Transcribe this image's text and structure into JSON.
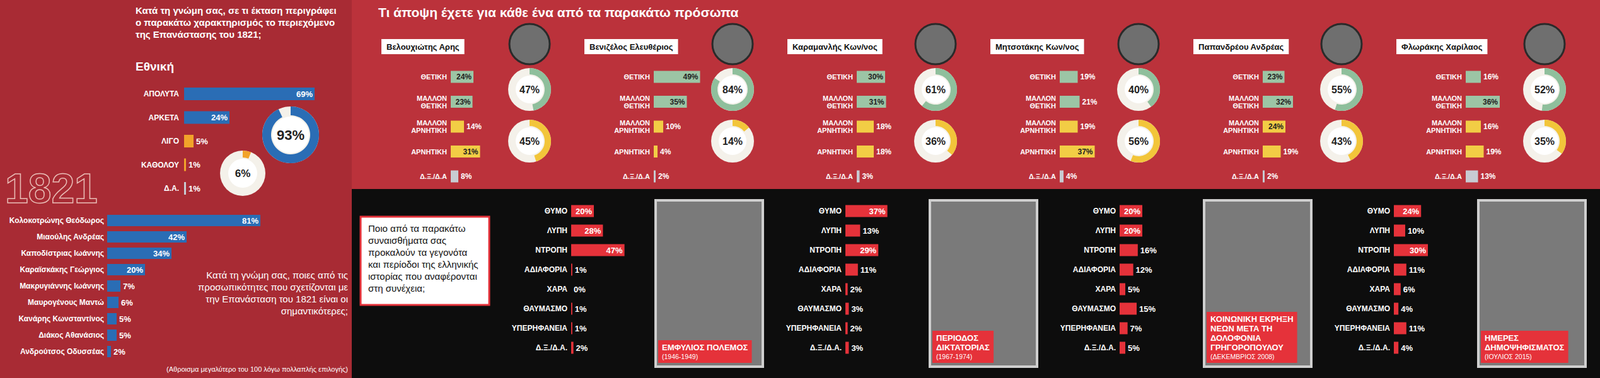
{
  "chart_data": [
    {
      "type": "bar",
      "orientation": "horizontal",
      "title": "Κατά τη γνώμη σας, σε τι έκταση περιγράφει ο παρακάτω χαρακτηρισμός το περιεχόμενο της Επανάστασης του 1821;",
      "subtitle": "Εθνική",
      "categories": [
        "ΑΠΟΛΥΤΑ",
        "ΑΡΚΕΤΑ",
        "ΛΙΓΟ",
        "ΚΑΘΟΛΟΥ",
        "Δ.Α."
      ],
      "values": [
        69,
        24,
        5,
        1,
        1
      ],
      "value_labels": [
        "69%",
        "24%",
        "5%",
        "1%",
        "1%"
      ],
      "colors": [
        "#2a6db5",
        "#2a6db5",
        "#f2a32a",
        "#f2a32a",
        "#c8cbd2"
      ],
      "totals": [
        93,
        6
      ],
      "total_labels": [
        "93%",
        "6%"
      ],
      "totals_lim": [
        0,
        100
      ],
      "annotations": [
        "1821"
      ],
      "data_labels": true,
      "tick_labels": "y"
    },
    {
      "type": "bar",
      "orientation": "horizontal",
      "title": "Κατά τη γνώμη σας, ποιες από τις προσωπικότητες που σχετίζονται με την Επανάσταση του 1821 είναι οι σημαντικότερες;",
      "note": "(Αθροισμα μεγαλύτερο του 100 λόγω πολλαπλής επιλογής)",
      "categories": [
        "Κολοκοτρώνης Θεόδωρος",
        "Μιαούλης Ανδρέας",
        "Καποδίστριας Ιωάννης",
        "Καραϊσκάκης Γεώργιος",
        "Μακρυγιάννης Ιωάννης",
        "Μαυρογένους Μαντώ",
        "Κανάρης Κωνσταντίνος",
        "Διάκος Αθανάσιος",
        "Ανδρούτσος Οδυσσέας"
      ],
      "values": [
        81,
        42,
        34,
        20,
        7,
        6,
        5,
        5,
        2
      ],
      "value_labels": [
        "81%",
        "42%",
        "34%",
        "20%",
        "7%",
        "6%",
        "5%",
        "5%",
        "2%"
      ],
      "color": "#2a6db5",
      "data_labels": true,
      "tick_labels": "y"
    },
    {
      "type": "bar",
      "orientation": "horizontal",
      "title": "Τι άποψη έχετε για κάθε ένα από τα παρακάτω πρόσωπα",
      "categories": [
        "ΘΕΤΙΚΗ",
        "ΜΑΛΛΟΝ ΘΕΤΙΚΗ",
        "ΜΑΛΛΟΝ ΑΡΝΗΤΙΚΗ",
        "ΑΡΝΗΤΙΚΗ",
        "Δ.Ξ./Δ.Α"
      ],
      "colors": [
        "#9cc5a5",
        "#9cc5a5",
        "#f2cd45",
        "#f2cd45",
        "#c8cbd2"
      ],
      "totals_lim": [
        0,
        100
      ],
      "series": [
        {
          "name": "Βελουχιώτης Αρης",
          "values": [
            24,
            23,
            14,
            31,
            8
          ],
          "value_labels": [
            "24%",
            "23%",
            "14%",
            "31%",
            "8%"
          ],
          "totals": [
            47,
            45
          ],
          "total_labels": [
            "47%",
            "45%"
          ]
        },
        {
          "name": "Βενιζέλος Ελευθέριος",
          "values": [
            49,
            35,
            10,
            4,
            2
          ],
          "value_labels": [
            "49%",
            "35%",
            "10%",
            "4%",
            "2%"
          ],
          "totals": [
            84,
            14
          ],
          "total_labels": [
            "84%",
            "14%"
          ]
        },
        {
          "name": "Καραμανλής Κων/νος",
          "values": [
            30,
            31,
            18,
            18,
            3
          ],
          "value_labels": [
            "30%",
            "31%",
            "18%",
            "18%",
            "3%"
          ],
          "totals": [
            61,
            36
          ],
          "total_labels": [
            "61%",
            "36%"
          ]
        },
        {
          "name": "Μητσοτάκης Κων/νος",
          "values": [
            19,
            21,
            19,
            37,
            4
          ],
          "value_labels": [
            "19%",
            "21%",
            "19%",
            "37%",
            "4%"
          ],
          "totals": [
            40,
            56
          ],
          "total_labels": [
            "40%",
            "56%"
          ]
        },
        {
          "name": "Παπανδρέου Ανδρέας",
          "values": [
            23,
            32,
            24,
            19,
            2
          ],
          "value_labels": [
            "23%",
            "32%",
            "24%",
            "19%",
            "2%"
          ],
          "totals": [
            55,
            43
          ],
          "total_labels": [
            "55%",
            "43%"
          ]
        },
        {
          "name": "Φλωράκης Χαρίλαος",
          "values": [
            16,
            36,
            16,
            19,
            13
          ],
          "value_labels": [
            "16%",
            "36%",
            "16%",
            "19%",
            "13%"
          ],
          "totals": [
            52,
            35
          ],
          "total_labels": [
            "52%",
            "35%"
          ]
        }
      ],
      "data_labels": true,
      "tick_labels": "y"
    },
    {
      "type": "bar",
      "orientation": "horizontal",
      "title": "Ποιο από τα παρακάτω συναισθήματα σας προκαλούν τα γεγονότα και περίοδοι της ελληνικής ιστορίας που αναφέρονται στη συνέχεια;",
      "categories": [
        "ΘΥΜΟ",
        "ΛΥΠΗ",
        "ΝΤΡΟΠΗ",
        "ΑΔΙΑΦΟΡΙΑ",
        "ΧΑΡΑ",
        "ΘΑΥΜΑΣΜΟ",
        "ΥΠΕΡΗΦΑΝΕΙΑ",
        "Δ.Ξ./Δ.Α."
      ],
      "color": "#e5323a",
      "series": [
        {
          "name": "ΕΜΦΥΛΙΟΣ ΠΟΛΕΜΟΣ",
          "date": "(1946-1949)",
          "values": [
            20,
            28,
            47,
            1,
            0,
            1,
            1,
            2
          ],
          "value_labels": [
            "20%",
            "28%",
            "47%",
            "1%",
            "0%",
            "1%",
            "1%",
            "2%"
          ]
        },
        {
          "name": "ΠΕΡΙΟΔΟΣ ΔΙΚΤΑΤΟΡΙΑΣ",
          "date": "(1967-1974)",
          "values": [
            37,
            13,
            29,
            11,
            2,
            3,
            2,
            3
          ],
          "value_labels": [
            "37%",
            "13%",
            "29%",
            "11%",
            "2%",
            "3%",
            "2%",
            "3%"
          ]
        },
        {
          "name": "ΚΟΙΝΩΝΙΚΗ ΕΚΡΗΞΗ ΝΕΩΝ ΜΕΤΑ ΤΗ ΔΟΛΟΦΟΝΙΑ ΓΡΗΓΟΡΟΠΟΥΛΟΥ",
          "date": "(ΔΕΚΕΜΒΡΙΟΣ 2008)",
          "values": [
            20,
            20,
            16,
            12,
            5,
            15,
            7,
            5
          ],
          "value_labels": [
            "20%",
            "20%",
            "16%",
            "12%",
            "5%",
            "15%",
            "7%",
            "5%"
          ]
        },
        {
          "name": "ΗΜΕΡΕΣ ΔΗΜΟΨΗΦΙΣΜΑΤΟΣ",
          "date": "(ΙΟΥΛΙΟΣ 2015)",
          "values": [
            24,
            10,
            30,
            11,
            6,
            4,
            11,
            4
          ],
          "value_labels": [
            "24%",
            "10%",
            "30%",
            "11%",
            "6%",
            "4%",
            "11%",
            "4%"
          ]
        }
      ],
      "data_labels": true,
      "tick_labels": "y"
    }
  ]
}
